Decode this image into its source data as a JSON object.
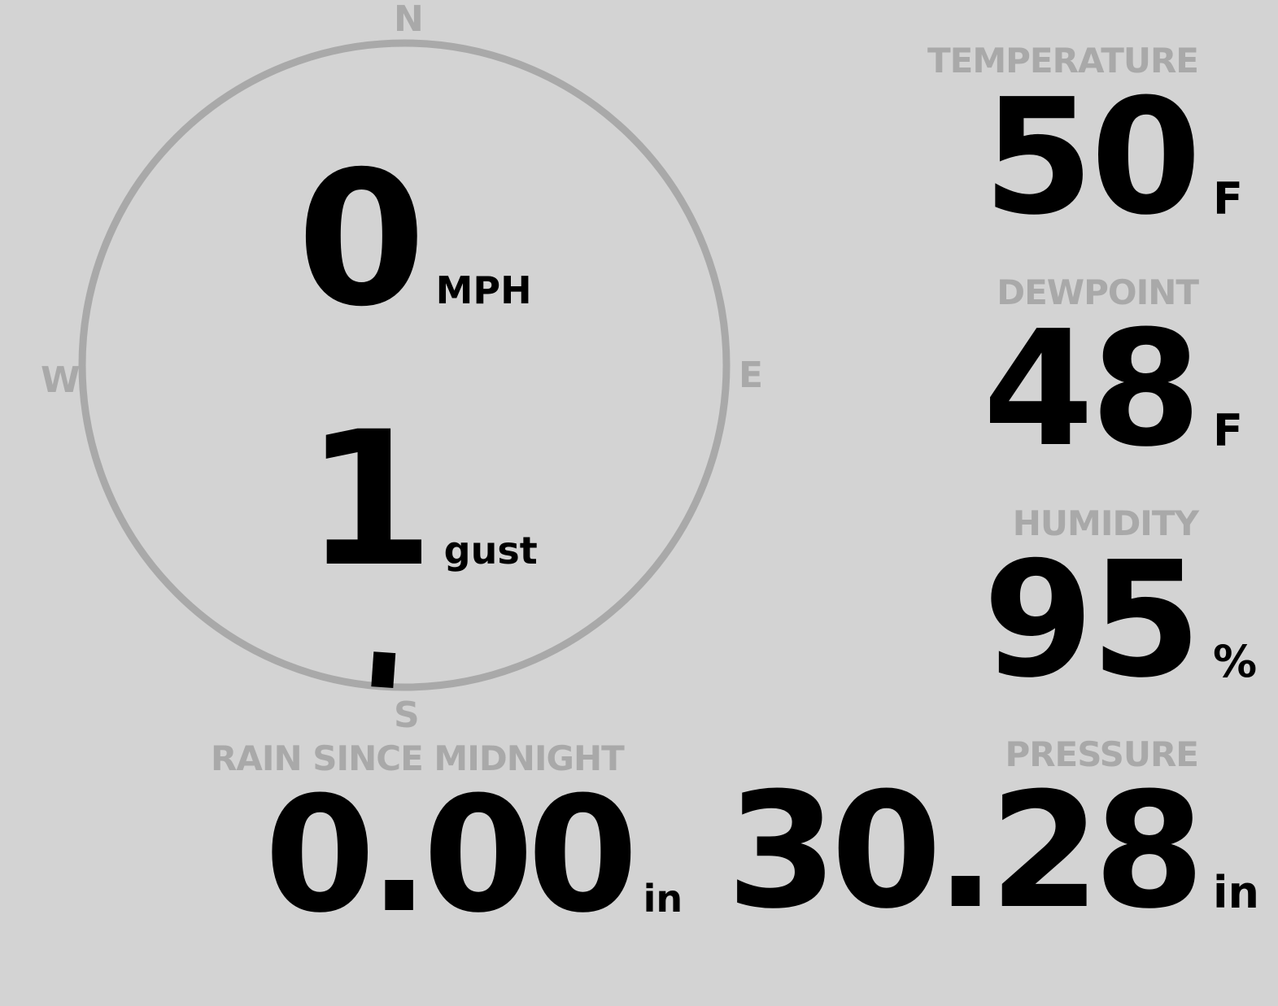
{
  "wind": {
    "compass": {
      "n": "N",
      "e": "E",
      "s": "S",
      "w": "W"
    },
    "speed": "0",
    "speed_unit": "MPH",
    "gust": "1",
    "gust_unit": "gust",
    "direction_degrees": 184,
    "ring_color": "#a9a9a9"
  },
  "temperature": {
    "label": "TEMPERATURE",
    "value": "50",
    "unit": "F"
  },
  "dewpoint": {
    "label": "DEWPOINT",
    "value": "48",
    "unit": "F"
  },
  "humidity": {
    "label": "HUMIDITY",
    "value": "95",
    "unit": "%"
  },
  "rain": {
    "label": "RAIN SINCE MIDNIGHT",
    "value": "0.00",
    "unit": "in"
  },
  "pressure": {
    "label": "PRESSURE",
    "value": "30.28",
    "unit": "in"
  },
  "colors": {
    "background": "#d3d3d3",
    "label": "#a9a9a9",
    "value": "#000000"
  }
}
